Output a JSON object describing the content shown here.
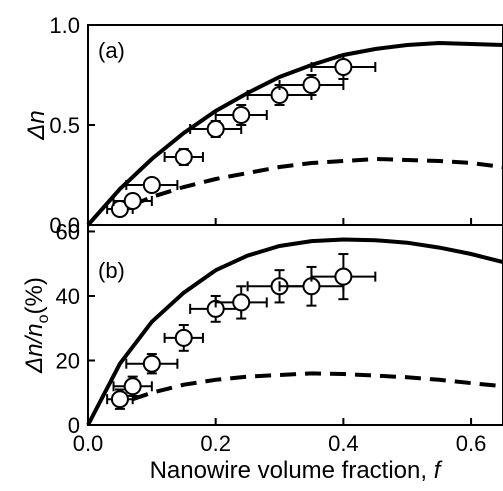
{
  "chart_data": [
    {
      "type": "scatter",
      "panel_label": "(a)",
      "ylabel": "Δn",
      "ylim": [
        0,
        1.0
      ],
      "xlim": [
        0,
        0.65
      ],
      "yticks": [
        0,
        0.5,
        1.0
      ],
      "ytick_labels": [
        "0.0",
        "0.5",
        "1.0"
      ],
      "series": [
        {
          "style": "points",
          "x": [
            0.05,
            0.07,
            0.1,
            0.15,
            0.2,
            0.24,
            0.3,
            0.35,
            0.4
          ],
          "y": [
            0.08,
            0.12,
            0.2,
            0.34,
            0.48,
            0.55,
            0.65,
            0.7,
            0.79
          ],
          "xerr": [
            0.02,
            0.03,
            0.04,
            0.03,
            0.04,
            0.04,
            0.05,
            0.05,
            0.05
          ],
          "yerr": [
            0.03,
            0.03,
            0.03,
            0.04,
            0.04,
            0.05,
            0.05,
            0.05,
            0.06
          ]
        },
        {
          "style": "solid",
          "x": [
            0,
            0.05,
            0.1,
            0.15,
            0.2,
            0.25,
            0.3,
            0.35,
            0.4,
            0.45,
            0.5,
            0.55,
            0.6,
            0.65
          ],
          "y": [
            0,
            0.18,
            0.33,
            0.46,
            0.57,
            0.66,
            0.74,
            0.8,
            0.85,
            0.88,
            0.9,
            0.91,
            0.905,
            0.9
          ]
        },
        {
          "style": "dashed",
          "x": [
            0.07,
            0.1,
            0.15,
            0.2,
            0.25,
            0.3,
            0.35,
            0.4,
            0.45,
            0.5,
            0.55,
            0.6,
            0.65
          ],
          "y": [
            0.1,
            0.14,
            0.19,
            0.23,
            0.26,
            0.29,
            0.31,
            0.32,
            0.33,
            0.325,
            0.32,
            0.31,
            0.29
          ]
        }
      ]
    },
    {
      "type": "scatter",
      "panel_label": "(b)",
      "ylabel_main": "Δn/n",
      "ylabel_sub": "o",
      "ylabel_suffix": "(%)",
      "ylim": [
        0,
        62
      ],
      "xlim": [
        0,
        0.65
      ],
      "yticks": [
        0,
        20,
        40,
        60
      ],
      "ytick_labels": [
        "0",
        "20",
        "40",
        "60"
      ],
      "xticks": [
        0.0,
        0.2,
        0.4,
        0.6
      ],
      "xtick_labels": [
        "0.0",
        "0.2",
        "0.4",
        "0.6"
      ],
      "xlabel_main": "Nanowire volume fraction, ",
      "xlabel_var": "f",
      "series": [
        {
          "style": "points",
          "x": [
            0.05,
            0.07,
            0.1,
            0.15,
            0.2,
            0.24,
            0.3,
            0.35,
            0.4
          ],
          "y": [
            8,
            12,
            19,
            27,
            36,
            38,
            43,
            43,
            46
          ],
          "xerr": [
            0.02,
            0.03,
            0.04,
            0.03,
            0.04,
            0.04,
            0.05,
            0.05,
            0.05
          ],
          "yerr": [
            3,
            3,
            3,
            4,
            4,
            5,
            5,
            6,
            7
          ]
        },
        {
          "style": "solid",
          "x": [
            0,
            0.05,
            0.1,
            0.15,
            0.2,
            0.25,
            0.3,
            0.35,
            0.4,
            0.45,
            0.5,
            0.55,
            0.6,
            0.65
          ],
          "y": [
            0,
            19,
            32,
            41,
            48,
            52.5,
            55.5,
            57,
            57.5,
            57.3,
            56.5,
            55,
            53,
            50.5
          ]
        },
        {
          "style": "dashed",
          "x": [
            0.07,
            0.1,
            0.15,
            0.2,
            0.25,
            0.3,
            0.35,
            0.4,
            0.45,
            0.5,
            0.55,
            0.6,
            0.65
          ],
          "y": [
            8,
            10,
            12.5,
            14,
            15,
            15.5,
            16,
            15.8,
            15.3,
            14.8,
            14,
            13,
            12
          ]
        }
      ]
    }
  ]
}
